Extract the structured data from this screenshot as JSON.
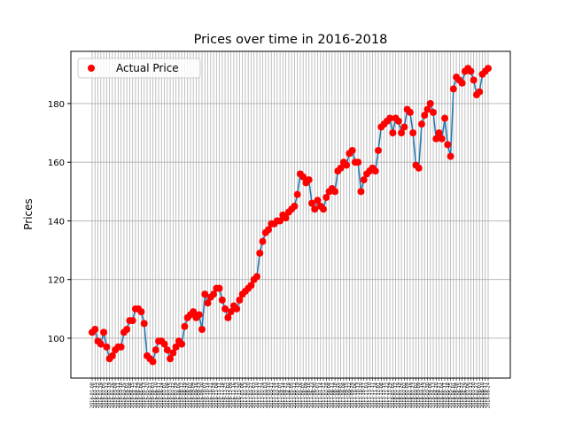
{
  "chart_data": {
    "type": "line_scatter",
    "title": "Prices over time in 2016-2018",
    "y_label": "Prices",
    "categories": [
      "2016-01-08",
      "2016-01-15",
      "2016-01-22",
      "2016-01-29",
      "2016-02-05",
      "2016-02-12",
      "2016-02-19",
      "2016-02-26",
      "2016-03-04",
      "2016-03-11",
      "2016-03-18",
      "2016-03-25",
      "2016-04-01",
      "2016-04-08",
      "2016-04-15",
      "2016-04-22",
      "2016-04-29",
      "2016-05-06",
      "2016-05-13",
      "2016-05-20",
      "2016-05-27",
      "2016-06-03",
      "2016-06-10",
      "2016-06-17",
      "2016-06-24",
      "2016-07-01",
      "2016-07-08",
      "2016-07-15",
      "2016-07-22",
      "2016-07-29",
      "2016-08-05",
      "2016-08-12",
      "2016-08-19",
      "2016-08-26",
      "2016-09-02",
      "2016-09-09",
      "2016-09-16",
      "2016-09-23",
      "2016-09-30",
      "2016-10-07",
      "2016-10-14",
      "2016-10-21",
      "2016-10-28",
      "2016-11-04",
      "2016-11-11",
      "2016-11-18",
      "2016-11-25",
      "2016-12-02",
      "2016-12-09",
      "2016-12-16",
      "2016-12-23",
      "2016-12-30",
      "2017-01-06",
      "2017-01-13",
      "2017-01-20",
      "2017-01-27",
      "2017-02-03",
      "2017-02-10",
      "2017-02-17",
      "2017-02-24",
      "2017-03-03",
      "2017-03-10",
      "2017-03-17",
      "2017-03-24",
      "2017-03-31",
      "2017-04-07",
      "2017-04-14",
      "2017-04-21",
      "2017-04-28",
      "2017-05-05",
      "2017-05-12",
      "2017-05-19",
      "2017-05-26",
      "2017-06-02",
      "2017-06-09",
      "2017-06-16",
      "2017-06-23",
      "2017-06-30",
      "2017-07-07",
      "2017-07-14",
      "2017-07-21",
      "2017-07-28",
      "2017-08-04",
      "2017-08-11",
      "2017-08-18",
      "2017-08-25",
      "2017-09-01",
      "2017-09-08",
      "2017-09-15",
      "2017-09-22",
      "2017-09-29",
      "2017-10-06",
      "2017-10-13",
      "2017-10-20",
      "2017-10-27",
      "2017-11-03",
      "2017-11-10",
      "2017-11-17",
      "2017-11-24",
      "2017-12-01",
      "2017-12-08",
      "2017-12-15",
      "2017-12-22",
      "2017-12-29",
      "2018-01-05",
      "2018-01-12",
      "2018-01-19",
      "2018-01-26",
      "2018-02-02",
      "2018-02-09",
      "2018-02-16",
      "2018-02-23",
      "2018-03-02",
      "2018-03-09",
      "2018-03-16",
      "2018-03-23",
      "2018-03-30",
      "2018-04-06",
      "2018-04-13",
      "2018-04-20",
      "2018-04-27",
      "2018-05-04",
      "2018-05-11",
      "2018-05-18",
      "2018-05-25",
      "2018-06-01",
      "2018-06-08",
      "2018-06-15",
      "2018-06-22",
      "2018-06-29",
      "2018-07-06",
      "2018-07-13",
      "2018-07-20",
      "2018-07-27",
      "2018-08-03",
      "2018-08-10",
      "2018-08-17",
      "2018-08-24"
    ],
    "series": [
      {
        "name": "Actual Price",
        "color": "#ff0000",
        "line_color": "#1f77b4",
        "values": [
          102,
          103,
          99,
          98,
          102,
          97,
          93,
          94,
          96,
          97,
          97,
          102,
          103,
          106,
          106,
          110,
          110,
          109,
          105,
          94,
          93,
          92,
          96,
          99,
          99,
          98,
          96,
          93,
          95,
          97,
          99,
          98,
          104,
          107,
          108,
          109,
          107,
          108,
          103,
          115,
          112,
          114,
          115,
          117,
          117,
          113,
          110,
          107,
          109,
          111,
          110,
          113,
          115,
          116,
          117,
          118,
          120,
          121,
          129,
          133,
          136,
          137,
          139,
          139,
          140,
          140,
          142,
          141,
          143,
          144,
          145,
          149,
          156,
          155,
          153,
          154,
          146,
          144,
          147,
          145,
          144,
          148,
          150,
          151,
          150,
          157,
          158,
          160,
          159,
          163,
          164,
          160,
          160,
          150,
          154,
          156,
          157,
          158,
          157,
          164,
          172,
          173,
          174,
          175,
          170,
          175,
          174,
          170,
          172,
          178,
          177,
          170,
          159,
          158,
          173,
          176,
          178,
          180,
          177,
          168,
          170,
          168,
          175,
          166,
          162,
          185,
          189,
          188,
          187,
          191,
          192,
          191,
          188,
          183,
          184,
          190,
          191,
          192
        ]
      }
    ],
    "ylim": [
      86.4,
      197.8
    ],
    "yticks": [
      100,
      120,
      140,
      160,
      180
    ],
    "grid": true,
    "legend": "upper left"
  }
}
